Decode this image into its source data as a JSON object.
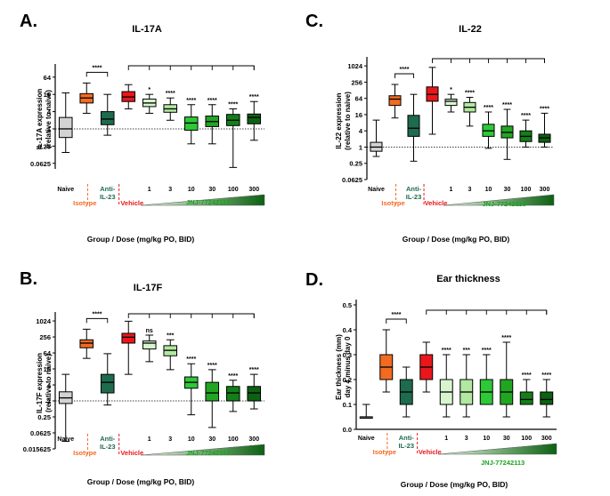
{
  "colors": {
    "naive": "#d3d3d3",
    "isotype": "#f26b21",
    "anti": "#1e6b4e",
    "vehicle": "#e8171c",
    "d1": "#d8f5cf",
    "d3": "#b2e8a2",
    "d10": "#2ec838",
    "d30": "#23a524",
    "d100": "#137f18",
    "d300": "#0d6112",
    "isotype_label": "#f26b21",
    "vehicle_label": "#e8171c",
    "anti_label": "#1e6b4e",
    "jnj_label": "#1aa31e"
  },
  "chart_data": [
    {
      "panel": "A.",
      "type": "box",
      "title": "IL-17A",
      "ylabel": [
        "IL-17A expression",
        "(relative to naive)"
      ],
      "xlabel": "Group / Dose (mg/kg PO, BID)",
      "scale": "log2",
      "yticks": [
        "64",
        "16",
        "4",
        "1",
        "0.25",
        "0.0625"
      ],
      "ytick_values": [
        64,
        16,
        4,
        1,
        0.25,
        0.0625
      ],
      "ylim": [
        0.04,
        120
      ],
      "baseline": 1,
      "categories": [
        "Naive",
        "Isotype",
        "Anti-IL-23",
        "Vehicle",
        "1",
        "3",
        "10",
        "30",
        "100",
        "300"
      ],
      "boxes": [
        {
          "group": "Naive",
          "min": 0.15,
          "q1": 0.5,
          "median": 1,
          "q3": 2.5,
          "max": 18
        },
        {
          "group": "Isotype",
          "min": 3.5,
          "q1": 8,
          "median": 12,
          "q3": 17,
          "max": 40
        },
        {
          "group": "Anti-IL-23",
          "min": 0.6,
          "q1": 1.4,
          "median": 2.2,
          "q3": 4,
          "max": 16
        },
        {
          "group": "Vehicle",
          "min": 5,
          "q1": 9,
          "median": 13,
          "q3": 20,
          "max": 35
        },
        {
          "group": "1",
          "min": 3.5,
          "q1": 6,
          "median": 8,
          "q3": 11,
          "max": 16
        },
        {
          "group": "3",
          "min": 2,
          "q1": 3.8,
          "median": 5,
          "q3": 7,
          "max": 12
        },
        {
          "group": "10",
          "min": 0.3,
          "q1": 0.9,
          "median": 1.6,
          "q3": 2.6,
          "max": 7
        },
        {
          "group": "30",
          "min": 0.3,
          "q1": 1.2,
          "median": 1.8,
          "q3": 2.8,
          "max": 7
        },
        {
          "group": "100",
          "min": 0.045,
          "q1": 1.3,
          "median": 2,
          "q3": 3.2,
          "max": 5
        },
        {
          "group": "300",
          "min": 0.4,
          "q1": 1.5,
          "median": 2.5,
          "q3": 3.3,
          "max": 9
        }
      ],
      "sig_top": "****",
      "sig_dose": [
        "*",
        "****",
        "****",
        "****",
        "****",
        "****"
      ],
      "group_labels": {
        "isotype": "Isotype",
        "anti": "Anti-\nIL-23",
        "vehicle": "Vehicle",
        "compound": "JNJ-77242113"
      }
    },
    {
      "panel": "C.",
      "type": "box",
      "title": "IL-22",
      "ylabel": [
        "IL-22 expression",
        "(relative to naive)"
      ],
      "xlabel": "Group / Dose (mg/kg PO, BID)",
      "scale": "log2",
      "yticks": [
        "1024",
        "256",
        "64",
        "16",
        "4",
        "1",
        "0.25",
        "0.0625"
      ],
      "ytick_values": [
        1024,
        256,
        64,
        16,
        4,
        1,
        0.25,
        0.0625
      ],
      "ylim": [
        0.0625,
        1400
      ],
      "baseline": 1,
      "categories": [
        "Naive",
        "Isotype",
        "Anti-IL-23",
        "Vehicle",
        "1",
        "3",
        "10",
        "30",
        "100",
        "300"
      ],
      "boxes": [
        {
          "group": "Naive",
          "min": 0.45,
          "q1": 0.7,
          "median": 1,
          "q3": 1.5,
          "max": 10
        },
        {
          "group": "Isotype",
          "min": 12,
          "q1": 35,
          "median": 60,
          "q3": 80,
          "max": 210
        },
        {
          "group": "Anti-IL-23",
          "min": 0.3,
          "q1": 2.5,
          "median": 5,
          "q3": 15,
          "max": 90
        },
        {
          "group": "Vehicle",
          "min": 3,
          "q1": 50,
          "median": 90,
          "q3": 170,
          "max": 900
        },
        {
          "group": "1",
          "min": 20,
          "q1": 35,
          "median": 50,
          "q3": 60,
          "max": 90
        },
        {
          "group": "3",
          "min": 6,
          "q1": 20,
          "median": 30,
          "q3": 45,
          "max": 70
        },
        {
          "group": "10",
          "min": 0.9,
          "q1": 2.5,
          "median": 4,
          "q3": 7,
          "max": 20
        },
        {
          "group": "30",
          "min": 0.35,
          "q1": 2.2,
          "median": 3.5,
          "q3": 6,
          "max": 25
        },
        {
          "group": "100",
          "min": 1,
          "q1": 1.6,
          "median": 2.5,
          "q3": 4,
          "max": 10
        },
        {
          "group": "300",
          "min": 1,
          "q1": 1.5,
          "median": 2.2,
          "q3": 3,
          "max": 18
        }
      ],
      "sig_top": "****",
      "sig_dose": [
        "*",
        "****",
        "****",
        "****",
        "****",
        "****"
      ],
      "group_labels": {
        "isotype": "Isotype",
        "anti": "Anti-\nIL-23",
        "vehicle": "Vehicle",
        "compound": "JNJ-77242113"
      }
    },
    {
      "panel": "B.",
      "type": "box",
      "title": "IL-17F",
      "ylabel": [
        "IL-17F expression",
        "(relative to naive)"
      ],
      "xlabel": "Group / Dose (mg/kg PO, BID)",
      "scale": "log2",
      "yticks": [
        "1024",
        "256",
        "64",
        "16",
        "4",
        "1",
        "0.25",
        "0.0625",
        "0.015625"
      ],
      "ytick_values": [
        1024,
        256,
        64,
        16,
        4,
        1,
        0.25,
        0.0625,
        0.015625
      ],
      "ylim": [
        0.015625,
        1400
      ],
      "baseline": 1,
      "categories": [
        "Naive",
        "Isotype",
        "Anti-IL-23",
        "Vehicle",
        "1",
        "3",
        "10",
        "30",
        "100",
        "300"
      ],
      "boxes": [
        {
          "group": "Naive",
          "min": 0.03,
          "q1": 0.8,
          "median": 1.3,
          "q3": 2.2,
          "max": 10
        },
        {
          "group": "Isotype",
          "min": 40,
          "q1": 100,
          "median": 150,
          "q3": 200,
          "max": 500
        },
        {
          "group": "Anti-IL-23",
          "min": 0.7,
          "q1": 2,
          "median": 5,
          "q3": 10,
          "max": 60
        },
        {
          "group": "Vehicle",
          "min": 10,
          "q1": 150,
          "median": 250,
          "q3": 350,
          "max": 1000
        },
        {
          "group": "1",
          "min": 30,
          "q1": 90,
          "median": 150,
          "q3": 180,
          "max": 300
        },
        {
          "group": "3",
          "min": 15,
          "q1": 50,
          "median": 80,
          "q3": 120,
          "max": 200
        },
        {
          "group": "10",
          "min": 0.3,
          "q1": 3,
          "median": 5,
          "q3": 8,
          "max": 25
        },
        {
          "group": "30",
          "min": 0.1,
          "q1": 1,
          "median": 2,
          "q3": 5,
          "max": 15
        },
        {
          "group": "100",
          "min": 0.4,
          "q1": 1,
          "median": 2,
          "q3": 3.5,
          "max": 6
        },
        {
          "group": "300",
          "min": 0.5,
          "q1": 1,
          "median": 2,
          "q3": 3.5,
          "max": 10
        }
      ],
      "sig_top": "****",
      "sig_dose": [
        "ns",
        "***",
        "****",
        "****",
        "****",
        "****"
      ],
      "group_labels": {
        "isotype": "Isotype",
        "anti": "Anti-\nIL-23",
        "vehicle": "Vehicle",
        "compound": "JNJ-77242113"
      }
    },
    {
      "panel": "D.",
      "type": "box",
      "title": "Ear thickness",
      "ylabel": [
        "Ear thickness (mm)",
        "day 4 minus day 0"
      ],
      "xlabel": "Group / Dose (mg/kg PO, BID)",
      "scale": "linear",
      "yticks": [
        "0.5",
        "0.4",
        "0.3",
        "0.2",
        "0.1",
        "0.0"
      ],
      "ytick_values": [
        0.5,
        0.4,
        0.3,
        0.2,
        0.1,
        0.0
      ],
      "ylim": [
        0,
        0.5
      ],
      "baseline": null,
      "categories": [
        "Naive",
        "Isotype",
        "Anti-IL-23",
        "Vehicle",
        "1",
        "3",
        "10",
        "30",
        "100",
        "300"
      ],
      "boxes": [
        {
          "group": "Naive",
          "min": 0.05,
          "q1": 0.05,
          "median": 0.05,
          "q3": 0.05,
          "max": 0.1
        },
        {
          "group": "Isotype",
          "min": 0.15,
          "q1": 0.2,
          "median": 0.25,
          "q3": 0.3,
          "max": 0.4
        },
        {
          "group": "Anti-IL-23",
          "min": 0.05,
          "q1": 0.1,
          "median": 0.15,
          "q3": 0.2,
          "max": 0.25
        },
        {
          "group": "Vehicle",
          "min": 0.15,
          "q1": 0.2,
          "median": 0.25,
          "q3": 0.3,
          "max": 0.35
        },
        {
          "group": "1",
          "min": 0.05,
          "q1": 0.1,
          "median": 0.15,
          "q3": 0.2,
          "max": 0.3
        },
        {
          "group": "3",
          "min": 0.05,
          "q1": 0.1,
          "median": 0.15,
          "q3": 0.2,
          "max": 0.3
        },
        {
          "group": "10",
          "min": 0.1,
          "q1": 0.1,
          "median": 0.15,
          "q3": 0.2,
          "max": 0.3
        },
        {
          "group": "30",
          "min": 0.05,
          "q1": 0.1,
          "median": 0.15,
          "q3": 0.2,
          "max": 0.35
        },
        {
          "group": "100",
          "min": 0.1,
          "q1": 0.1,
          "median": 0.12,
          "q3": 0.15,
          "max": 0.2
        },
        {
          "group": "300",
          "min": 0.05,
          "q1": 0.1,
          "median": 0.12,
          "q3": 0.15,
          "max": 0.2
        }
      ],
      "sig_top": "****",
      "sig_dose": [
        "****",
        "***",
        "****",
        "****",
        "****",
        "****"
      ],
      "group_labels": {
        "isotype": "Isotype",
        "anti": "Anti-\nIL-23",
        "vehicle": "Vehicle",
        "compound": "JNJ-77242113"
      }
    }
  ]
}
